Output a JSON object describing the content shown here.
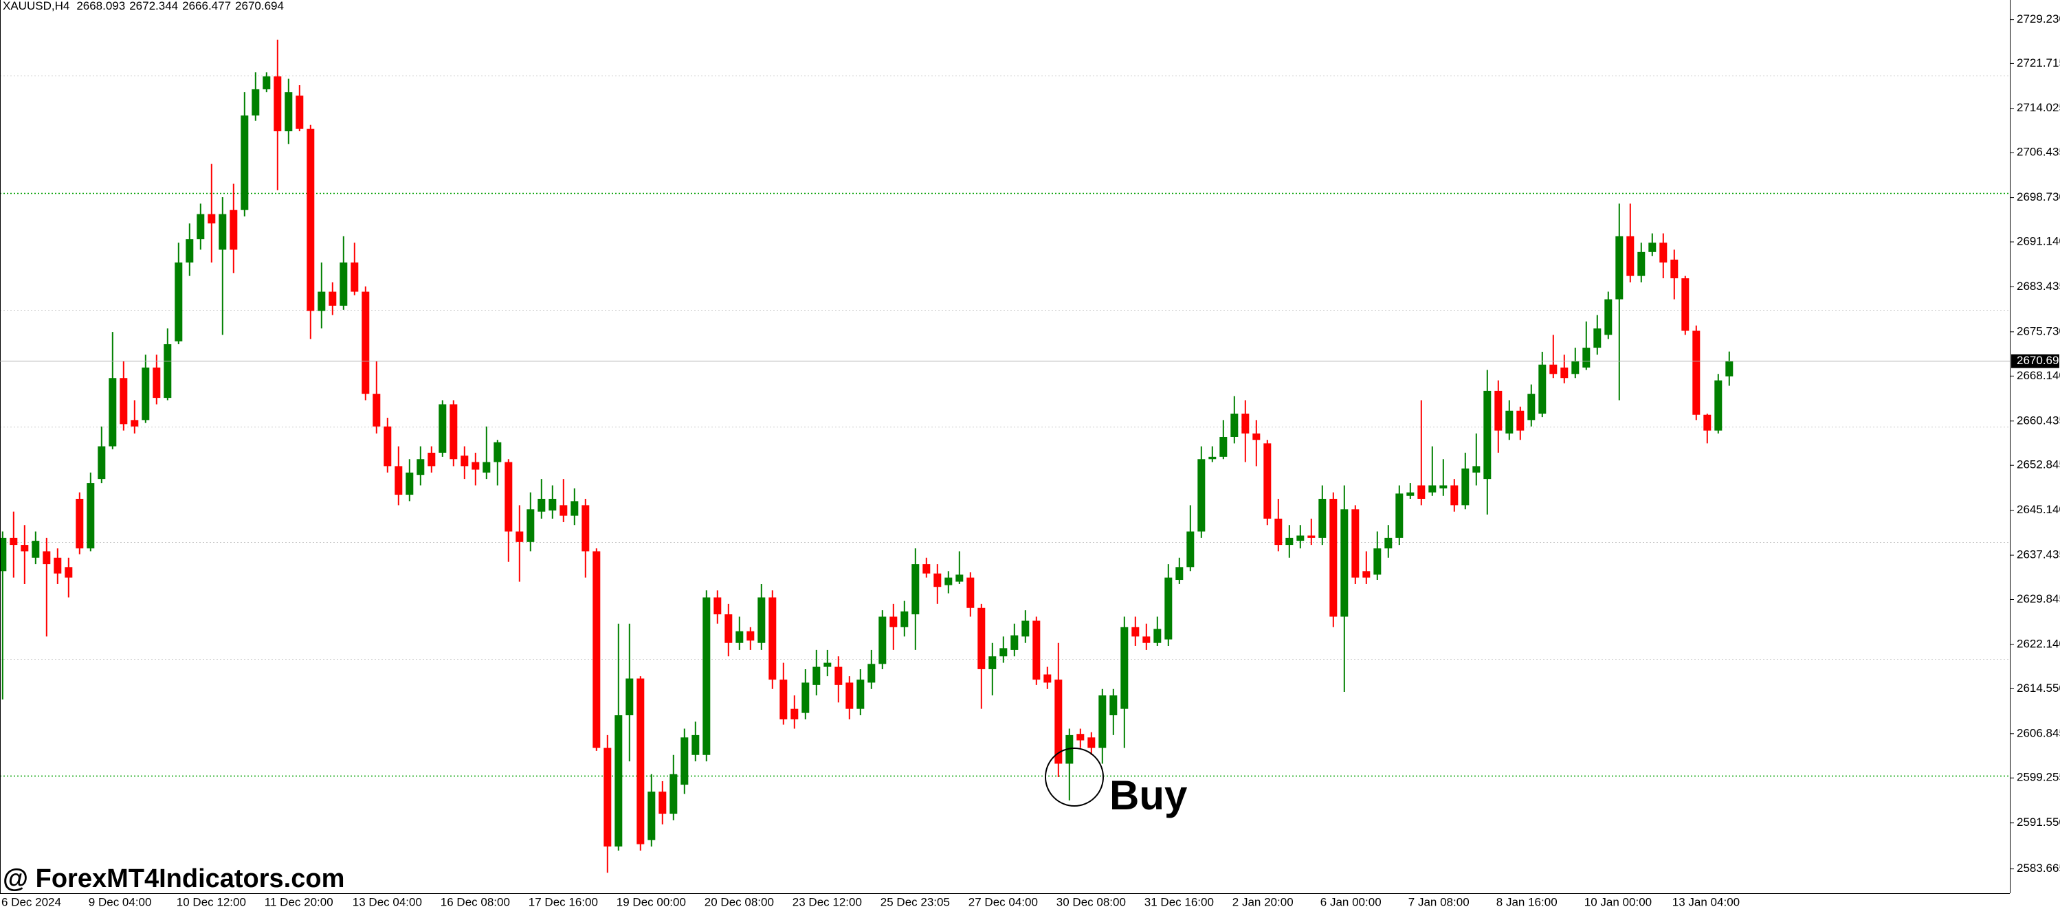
{
  "chart_data": {
    "type": "candlestick",
    "symbol": "XAUUSD,H4",
    "watermark": "@ ForexMT4Indicators.com",
    "annotation": "Buy",
    "up_color": "#008000",
    "down_color": "#ff0000",
    "level_color": "#00a000",
    "levels": [
      2699.5,
      2599.6
    ],
    "grid_lines": [
      2719.6,
      2679.5,
      2659.5,
      2639.7,
      2619.7
    ],
    "ylim": [
      2579.5,
      2732.6
    ],
    "yticks": [
      {
        "value": 2729.23,
        "label": "2729.230"
      },
      2721.715,
      2714.025,
      2706.435,
      {
        "value": 2698.73,
        "label": "2698.730"
      },
      {
        "value": 2691.14,
        "label": "2691.140"
      },
      2683.435,
      {
        "value": 2675.73,
        "label": "2675.730"
      },
      {
        "value": 2668.14,
        "label": "2668.140"
      },
      2660.435,
      2652.845,
      {
        "value": 2645.14,
        "label": "2645.140"
      },
      2637.435,
      2629.845,
      {
        "value": 2622.14,
        "label": "2622.140"
      },
      {
        "value": 2614.55,
        "label": "2614.550"
      },
      2606.845,
      2599.255,
      {
        "value": 2591.55,
        "label": "2591.550"
      },
      2583.665
    ],
    "categories": [
      "6 Dec 2024",
      null,
      null,
      null,
      null,
      null,
      null,
      null,
      "9 Dec 04:00",
      null,
      null,
      null,
      null,
      null,
      null,
      null,
      "10 Dec 12:00",
      null,
      null,
      null,
      null,
      null,
      null,
      null,
      "11 Dec 20:00",
      null,
      null,
      null,
      null,
      null,
      null,
      null,
      "13 Dec 04:00",
      null,
      null,
      null,
      null,
      null,
      null,
      null,
      "16 Dec 08:00",
      null,
      null,
      null,
      null,
      null,
      null,
      null,
      "17 Dec 16:00",
      null,
      null,
      null,
      null,
      null,
      null,
      null,
      "19 Dec 00:00",
      null,
      null,
      null,
      null,
      null,
      null,
      null,
      "20 Dec 08:00",
      null,
      null,
      null,
      null,
      null,
      null,
      null,
      "23 Dec 12:00",
      null,
      null,
      null,
      null,
      null,
      null,
      null,
      "25 Dec 23:05",
      null,
      null,
      null,
      null,
      null,
      null,
      null,
      "27 Dec 04:00",
      null,
      null,
      null,
      null,
      null,
      null,
      null,
      "30 Dec 08:00",
      null,
      null,
      null,
      null,
      null,
      null,
      null,
      "31 Dec 16:00",
      null,
      null,
      null,
      null,
      null,
      null,
      null,
      "2 Jan 20:00",
      null,
      null,
      null,
      null,
      null,
      null,
      null,
      "6 Jan 00:00",
      null,
      null,
      null,
      null,
      null,
      null,
      null,
      "7 Jan 08:00",
      null,
      null,
      null,
      null,
      null,
      null,
      null,
      "8 Jan 16:00",
      null,
      null,
      null,
      null,
      null,
      null,
      null,
      "10 Jan 00:00",
      null,
      null,
      null,
      null,
      null,
      null,
      null,
      "13 Jan 04:00",
      null,
      null,
      null,
      null,
      null
    ],
    "open": [
      2634.7,
      2640.4,
      2639.2,
      2637.0,
      2638.1,
      2637.0,
      2635.4,
      2647.1,
      2638.6,
      2650.5,
      2656.1,
      2667.8,
      2660.6,
      2660.6,
      2669.6,
      2664.4,
      2674.1,
      2687.6,
      2691.6,
      2695.9,
      2689.8,
      2696.6,
      2696.6,
      2712.8,
      2717.3,
      2719.5,
      2710.1,
      2716.2,
      2710.5,
      2679.3,
      2682.6,
      2680.2,
      2687.6,
      2682.6,
      2665.1,
      2659.5,
      2652.7,
      2647.8,
      2651.2,
      2655.0,
      2655.0,
      2663.3,
      2654.5,
      2653.4,
      2651.6,
      2653.4,
      2653.4,
      2641.5,
      2639.7,
      2644.9,
      2645.1,
      2646.0,
      2644.2,
      2646.0,
      2638.1,
      2604.4,
      2587.5,
      2610.0,
      2616.3,
      2588.6,
      2596.9,
      2593.1,
      2598.1,
      2603.2,
      2603.2,
      2630.2,
      2627.3,
      2622.4,
      2624.4,
      2622.4,
      2630.2,
      2616.1,
      2611.1,
      2610.4,
      2615.2,
      2618.3,
      2618.3,
      2615.6,
      2611.1,
      2615.6,
      2618.8,
      2626.9,
      2625.1,
      2627.3,
      2635.9,
      2634.3,
      2632.3,
      2632.9,
      2633.6,
      2628.4,
      2617.9,
      2620.1,
      2621.2,
      2623.5,
      2626.2,
      2617.0,
      2616.1,
      2601.7,
      2606.8,
      2606.2,
      2604.4,
      2610.0,
      2611.1,
      2625.1,
      2623.5,
      2622.4,
      2623.0,
      2633.2,
      2635.4,
      2641.5,
      2653.9,
      2654.3,
      2657.7,
      2661.7,
      2658.3,
      2656.6,
      2643.7,
      2639.2,
      2639.9,
      2640.8,
      2640.4,
      2647.1,
      2626.9,
      2645.3,
      2634.7,
      2634.1,
      2638.6,
      2640.4,
      2647.6,
      2649.4,
      2648.2,
      2648.9,
      2649.4,
      2646.0,
      2651.6,
      2650.5,
      2665.6,
      2658.3,
      2662.2,
      2660.6,
      2661.7,
      2670.1,
      2669.6,
      2668.5,
      2669.6,
      2673.0,
      2675.2,
      2681.3,
      2692.1,
      2685.3,
      2689.4,
      2691.0,
      2688.1,
      2684.9,
      2675.9,
      2661.5,
      2658.8,
      2668.093
    ],
    "high": [
      2641.5,
      2644.9,
      2642.6,
      2641.5,
      2640.4,
      2638.6,
      2637.0,
      2648.2,
      2651.6,
      2659.5,
      2675.7,
      2670.7,
      2664.0,
      2671.8,
      2671.8,
      2676.3,
      2691.0,
      2694.3,
      2697.7,
      2704.5,
      2698.8,
      2701.1,
      2716.8,
      2720.2,
      2720.2,
      2725.8,
      2719.1,
      2718.0,
      2711.2,
      2687.6,
      2684.2,
      2692.1,
      2691.0,
      2683.5,
      2670.7,
      2661.0,
      2656.1,
      2653.9,
      2656.1,
      2656.1,
      2664.0,
      2664.0,
      2656.1,
      2655.0,
      2659.5,
      2657.2,
      2653.9,
      2646.0,
      2648.2,
      2650.5,
      2649.4,
      2650.5,
      2648.9,
      2647.1,
      2638.6,
      2606.6,
      2625.7,
      2625.7,
      2616.7,
      2599.9,
      2598.7,
      2603.2,
      2607.7,
      2608.9,
      2631.4,
      2631.4,
      2629.1,
      2626.9,
      2625.1,
      2632.5,
      2631.4,
      2619.0,
      2613.4,
      2617.9,
      2621.2,
      2621.2,
      2620.1,
      2616.7,
      2617.9,
      2621.2,
      2628.0,
      2629.1,
      2629.6,
      2638.6,
      2637.0,
      2635.9,
      2634.7,
      2638.1,
      2634.5,
      2629.1,
      2622.4,
      2623.5,
      2625.7,
      2628.0,
      2626.9,
      2618.3,
      2622.4,
      2607.7,
      2607.7,
      2607.1,
      2614.5,
      2614.5,
      2626.9,
      2626.9,
      2625.7,
      2626.9,
      2635.9,
      2637.0,
      2646.0,
      2656.1,
      2656.1,
      2660.6,
      2664.7,
      2664.0,
      2660.6,
      2657.2,
      2647.1,
      2642.6,
      2642.6,
      2643.7,
      2649.4,
      2648.2,
      2649.4,
      2646.0,
      2638.1,
      2641.5,
      2642.6,
      2649.4,
      2649.8,
      2664.0,
      2656.1,
      2653.9,
      2650.5,
      2655.0,
      2658.3,
      2669.2,
      2667.4,
      2664.0,
      2662.9,
      2666.7,
      2672.3,
      2675.2,
      2671.8,
      2673.0,
      2677.5,
      2678.6,
      2682.6,
      2697.7,
      2697.7,
      2691.0,
      2692.6,
      2692.6,
      2689.8,
      2685.3,
      2676.8,
      2661.7,
      2668.5,
      2672.344
    ],
    "low": [
      2612.7,
      2633.6,
      2632.5,
      2635.9,
      2623.5,
      2632.5,
      2630.2,
      2637.6,
      2638.1,
      2649.8,
      2655.6,
      2658.8,
      2658.3,
      2660.1,
      2663.3,
      2664.0,
      2673.6,
      2685.3,
      2689.8,
      2687.6,
      2675.2,
      2685.8,
      2695.5,
      2711.9,
      2716.8,
      2700.0,
      2707.9,
      2710.1,
      2674.5,
      2676.3,
      2678.6,
      2679.5,
      2682.0,
      2664.0,
      2658.3,
      2651.6,
      2646.0,
      2646.7,
      2649.4,
      2651.6,
      2654.3,
      2652.7,
      2650.5,
      2649.4,
      2650.5,
      2649.4,
      2636.3,
      2632.9,
      2638.1,
      2643.7,
      2643.7,
      2643.1,
      2642.6,
      2633.6,
      2603.9,
      2583.0,
      2586.8,
      2602.1,
      2586.8,
      2587.5,
      2591.3,
      2592.0,
      2596.5,
      2602.1,
      2602.1,
      2625.7,
      2620.1,
      2621.2,
      2621.2,
      2621.2,
      2614.5,
      2608.4,
      2607.7,
      2609.3,
      2613.4,
      2616.7,
      2612.2,
      2609.3,
      2610.0,
      2614.5,
      2617.9,
      2621.2,
      2623.5,
      2621.2,
      2633.6,
      2629.1,
      2630.9,
      2632.5,
      2626.9,
      2611.1,
      2613.4,
      2619.0,
      2620.1,
      2622.4,
      2615.2,
      2614.5,
      2599.4,
      2595.4,
      2604.4,
      2603.2,
      2601.7,
      2606.6,
      2604.4,
      2621.9,
      2621.2,
      2621.9,
      2621.9,
      2632.5,
      2634.7,
      2640.4,
      2653.4,
      2653.9,
      2656.6,
      2653.4,
      2652.7,
      2642.6,
      2638.1,
      2637.0,
      2638.6,
      2639.2,
      2639.2,
      2625.1,
      2614.0,
      2632.5,
      2632.5,
      2633.2,
      2637.0,
      2639.2,
      2647.1,
      2646.0,
      2647.6,
      2647.6,
      2644.9,
      2645.3,
      2649.4,
      2644.4,
      2655.0,
      2657.2,
      2657.2,
      2659.5,
      2661.1,
      2667.8,
      2666.9,
      2667.8,
      2669.2,
      2671.8,
      2674.5,
      2664.0,
      2684.2,
      2684.2,
      2688.7,
      2684.9,
      2681.3,
      2675.2,
      2660.6,
      2656.6,
      2658.3,
      2666.477
    ],
    "close": [
      2640.4,
      2639.2,
      2638.1,
      2639.9,
      2635.9,
      2634.3,
      2633.6,
      2638.6,
      2649.8,
      2656.1,
      2667.8,
      2659.9,
      2659.5,
      2669.6,
      2664.4,
      2673.6,
      2687.6,
      2691.6,
      2695.9,
      2694.3,
      2695.9,
      2689.8,
      2712.8,
      2717.3,
      2719.5,
      2710.1,
      2716.8,
      2710.5,
      2679.3,
      2682.6,
      2680.2,
      2687.6,
      2682.6,
      2665.1,
      2659.5,
      2652.7,
      2647.8,
      2651.6,
      2653.9,
      2652.7,
      2663.3,
      2653.9,
      2652.7,
      2652.1,
      2653.4,
      2656.8,
      2641.5,
      2639.7,
      2645.3,
      2647.1,
      2647.1,
      2644.2,
      2646.7,
      2638.1,
      2604.4,
      2587.5,
      2610.0,
      2616.3,
      2587.9,
      2596.9,
      2593.1,
      2599.9,
      2606.2,
      2606.6,
      2630.2,
      2627.3,
      2622.4,
      2624.4,
      2622.8,
      2630.2,
      2616.1,
      2609.3,
      2609.3,
      2615.6,
      2618.3,
      2619.0,
      2615.2,
      2611.1,
      2616.1,
      2618.8,
      2626.9,
      2625.1,
      2627.8,
      2635.9,
      2634.3,
      2632.0,
      2633.6,
      2634.1,
      2628.4,
      2617.9,
      2620.1,
      2621.5,
      2623.7,
      2626.2,
      2616.1,
      2615.6,
      2601.7,
      2606.6,
      2605.7,
      2604.4,
      2613.4,
      2613.4,
      2625.1,
      2623.5,
      2622.4,
      2624.8,
      2633.6,
      2635.4,
      2641.5,
      2653.9,
      2654.3,
      2657.7,
      2661.7,
      2658.3,
      2657.2,
      2643.7,
      2639.2,
      2640.4,
      2640.8,
      2640.4,
      2647.1,
      2626.9,
      2645.3,
      2633.6,
      2633.6,
      2638.6,
      2640.4,
      2648.0,
      2648.2,
      2647.1,
      2649.4,
      2649.4,
      2646.0,
      2652.3,
      2652.7,
      2665.6,
      2658.8,
      2662.2,
      2658.8,
      2665.1,
      2670.1,
      2668.5,
      2667.8,
      2670.7,
      2673.0,
      2676.3,
      2681.3,
      2692.1,
      2685.3,
      2689.4,
      2691.0,
      2687.6,
      2684.9,
      2675.9,
      2661.5,
      2658.8,
      2667.4,
      2670.694
    ]
  }
}
